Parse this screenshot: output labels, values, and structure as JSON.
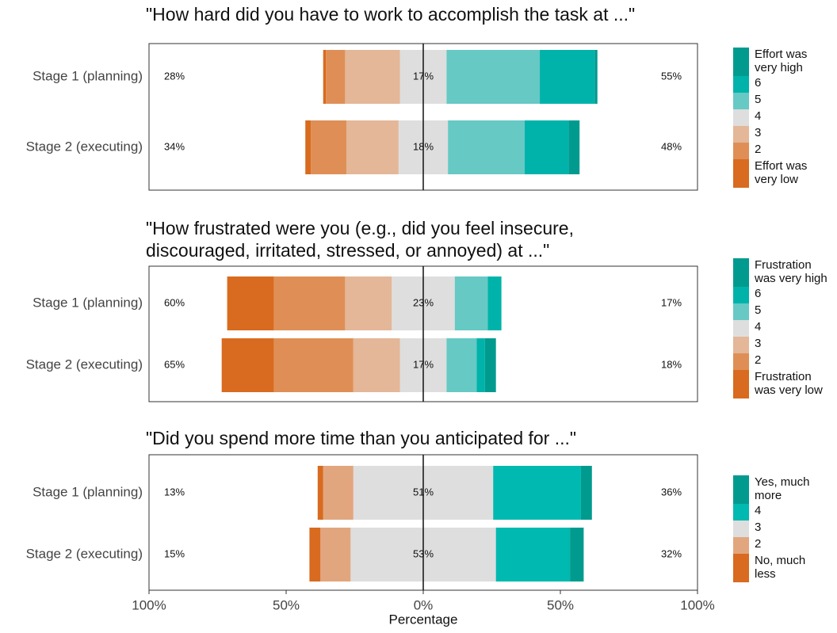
{
  "chart_data": [
    {
      "type": "diverging_bar",
      "title": "\"How hard did you have to work to accomplish the task at ...\"",
      "categories": [
        "Stage 1 (planning)",
        "Stage 2 (executing)"
      ],
      "neutral_index": 3,
      "series": [
        {
          "name": "Effort was\nvery low",
          "color": "#d86b1f",
          "values": [
            1,
            2
          ]
        },
        {
          "name": "2",
          "color": "#df8f56",
          "values": [
            7,
            13
          ]
        },
        {
          "name": "3",
          "color": "#e3b797",
          "values": [
            20,
            19
          ]
        },
        {
          "name": "4",
          "color": "#dedede",
          "values": [
            17,
            18
          ]
        },
        {
          "name": "5",
          "color": "#66c9c4",
          "values": [
            34,
            28
          ]
        },
        {
          "name": "6",
          "color": "#00b3aa",
          "values": [
            20,
            16
          ]
        },
        {
          "name": "Effort was\nvery high",
          "color": "#009b8e",
          "values": [
            1,
            4
          ]
        }
      ],
      "left_labels": {
        "values": [
          28,
          34
        ],
        "value_labels": [
          "28%",
          "34%"
        ]
      },
      "center_labels": {
        "values": [
          17,
          18
        ],
        "value_labels": [
          "17%",
          "18%"
        ]
      },
      "right_labels": {
        "values": [
          55,
          48
        ],
        "value_labels": [
          "55%",
          "48%"
        ]
      },
      "xlim": [
        -100,
        100
      ]
    },
    {
      "type": "diverging_bar",
      "title": "\"How frustrated were you (e.g., did you feel insecure,\ndiscouraged, irritated, stressed, or annoyed) at ...\"",
      "categories": [
        "Stage 1 (planning)",
        "Stage 2 (executing)"
      ],
      "neutral_index": 3,
      "series": [
        {
          "name": "Frustration\nwas very low",
          "color": "#d86b1f",
          "values": [
            17,
            19
          ]
        },
        {
          "name": "2",
          "color": "#df8f56",
          "values": [
            26,
            29
          ]
        },
        {
          "name": "3",
          "color": "#e3b797",
          "values": [
            17,
            17
          ]
        },
        {
          "name": "4",
          "color": "#dedede",
          "values": [
            23,
            17
          ]
        },
        {
          "name": "5",
          "color": "#66c9c4",
          "values": [
            12,
            11
          ]
        },
        {
          "name": "6",
          "color": "#00b3aa",
          "values": [
            5,
            3
          ]
        },
        {
          "name": "Frustration\nwas very high",
          "color": "#009b8e",
          "values": [
            0,
            4
          ]
        }
      ],
      "left_labels": {
        "values": [
          60,
          65
        ],
        "value_labels": [
          "60%",
          "65%"
        ]
      },
      "center_labels": {
        "values": [
          23,
          17
        ],
        "value_labels": [
          "23%",
          "17%"
        ]
      },
      "right_labels": {
        "values": [
          17,
          18
        ],
        "value_labels": [
          "17%",
          "18%"
        ]
      },
      "xlim": [
        -100,
        100
      ]
    },
    {
      "type": "diverging_bar",
      "title": "\"Did you spend more time than you anticipated for ...\"",
      "categories": [
        "Stage 1 (planning)",
        "Stage 2 (executing)"
      ],
      "neutral_index": 2,
      "series": [
        {
          "name": "No, much\nless",
          "color": "#d86b1f",
          "values": [
            2,
            4
          ]
        },
        {
          "name": "2",
          "color": "#e2a67e",
          "values": [
            11,
            11
          ]
        },
        {
          "name": "3",
          "color": "#dedede",
          "values": [
            51,
            53
          ]
        },
        {
          "name": "4",
          "color": "#00b9b0",
          "values": [
            32,
            27
          ]
        },
        {
          "name": "Yes, much\nmore",
          "color": "#009b8e",
          "values": [
            4,
            5
          ]
        }
      ],
      "left_labels": {
        "values": [
          13,
          15
        ],
        "value_labels": [
          "13%",
          "15%"
        ]
      },
      "center_labels": {
        "values": [
          51,
          53
        ],
        "value_labels": [
          "51%",
          "53%"
        ]
      },
      "right_labels": {
        "values": [
          36,
          32
        ],
        "value_labels": [
          "36%",
          "32%"
        ]
      },
      "xlim": [
        -100,
        100
      ],
      "xticks": [
        {
          "value": -100,
          "label": "100%"
        },
        {
          "value": -50,
          "label": "50%"
        },
        {
          "value": 0,
          "label": "0%"
        },
        {
          "value": 50,
          "label": "50%"
        },
        {
          "value": 100,
          "label": "100%"
        }
      ],
      "xlabel": "Percentage"
    }
  ]
}
